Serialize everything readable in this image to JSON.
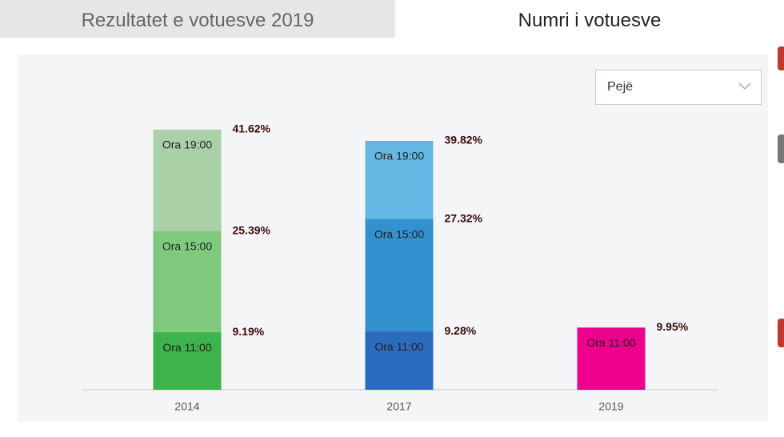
{
  "tabs": [
    "Rezultatet e votuesve 2019",
    "Numri i votuesve"
  ],
  "dropdown": {
    "selected": "Pejë"
  },
  "chart_data": {
    "type": "overlap-bar",
    "categories": [
      "2014",
      "2017",
      "2019"
    ],
    "ylim": [
      0,
      42
    ],
    "series": [
      {
        "name": "Ora 11:00",
        "colors": [
          "#3cb44b",
          "#2b6cbf",
          "#ec008c"
        ],
        "values": [
          9.19,
          9.28,
          9.95
        ],
        "value_labels": [
          "9.19%",
          "9.28%",
          "9.95%"
        ]
      },
      {
        "name": "Ora 15:00",
        "colors": [
          "#7fc97f",
          "#3391cf",
          null
        ],
        "values": [
          25.39,
          27.32,
          null
        ],
        "value_labels": [
          "25.39%",
          "27.32%",
          null
        ]
      },
      {
        "name": "Ora 19:00",
        "colors": [
          "#a9d0a7",
          "#63b7e2",
          null
        ],
        "values": [
          41.62,
          39.82,
          null
        ],
        "value_labels": [
          "41.62%",
          "39.82%",
          null
        ]
      }
    ]
  }
}
